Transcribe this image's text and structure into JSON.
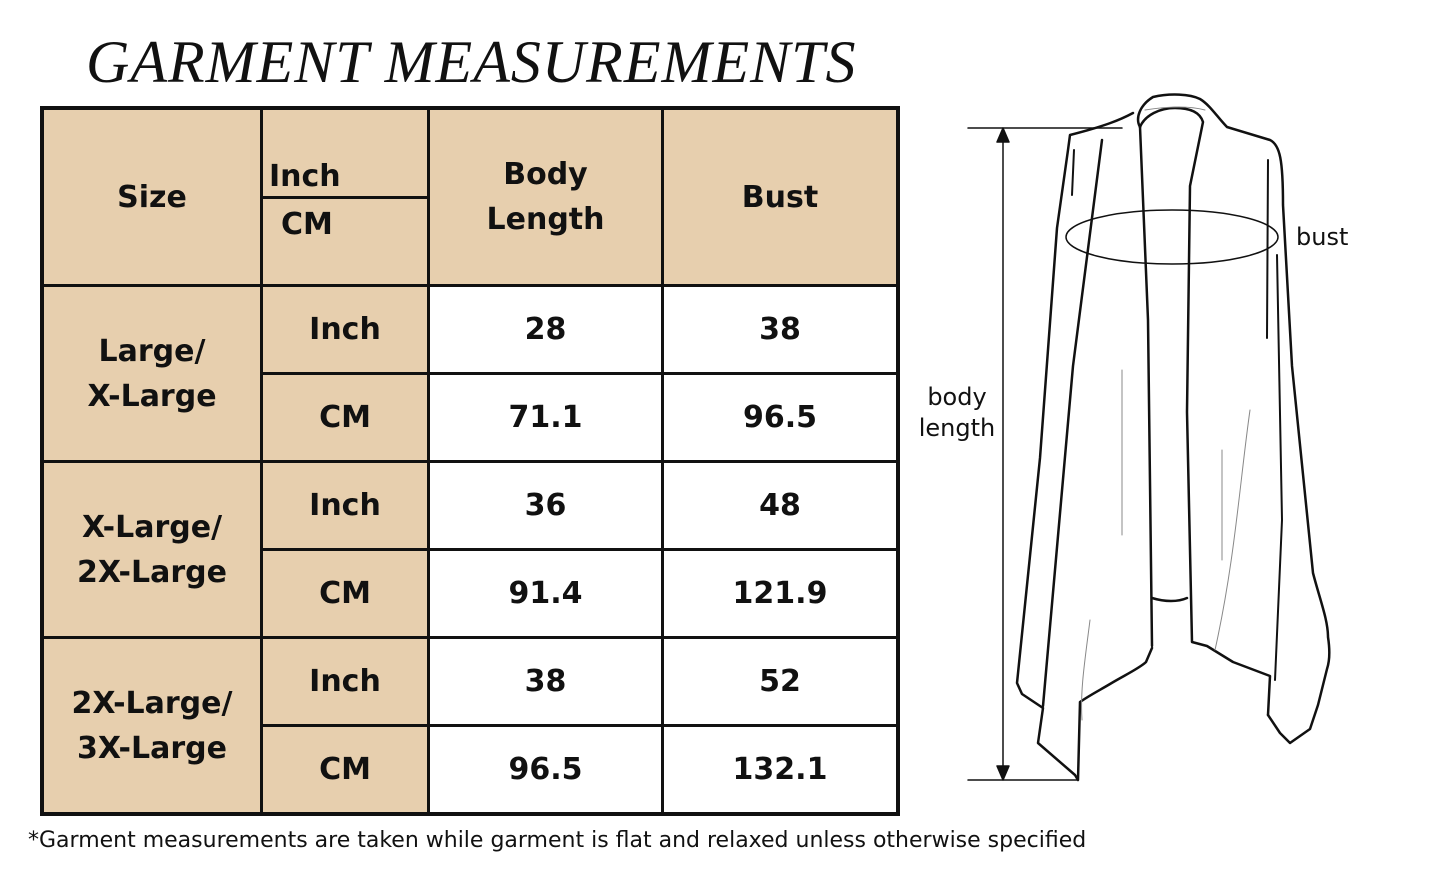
{
  "title": "GARMENT MEASUREMENTS",
  "table": {
    "headers": {
      "size": "Size",
      "unit_inch": "Inch",
      "unit_cm": "CM",
      "body_length_1": "Body",
      "body_length_2": "Length",
      "bust": "Bust"
    },
    "rows": [
      {
        "size_1": "Large/",
        "size_2": "X-Large",
        "inch": {
          "unit": "Inch",
          "body_length": "28",
          "bust": "38"
        },
        "cm": {
          "unit": "CM",
          "body_length": "71.1",
          "bust": "96.5"
        }
      },
      {
        "size_1": "X-Large/",
        "size_2": "2X-Large",
        "inch": {
          "unit": "Inch",
          "body_length": "36",
          "bust": "48"
        },
        "cm": {
          "unit": "CM",
          "body_length": "91.4",
          "bust": "121.9"
        }
      },
      {
        "size_1": "2X-Large/",
        "size_2": "3X-Large",
        "inch": {
          "unit": "Inch",
          "body_length": "38",
          "bust": "52"
        },
        "cm": {
          "unit": "CM",
          "body_length": "96.5",
          "bust": "132.1"
        }
      }
    ],
    "colors": {
      "header_bg": "#e7cfae",
      "cell_bg": "#ffffff",
      "border": "#111111"
    }
  },
  "diagram": {
    "bust_label": "bust",
    "body_length_label_1": "body",
    "body_length_label_2": "length"
  },
  "footnote": "*Garment measurements are taken while garment is flat and relaxed unless otherwise specified"
}
